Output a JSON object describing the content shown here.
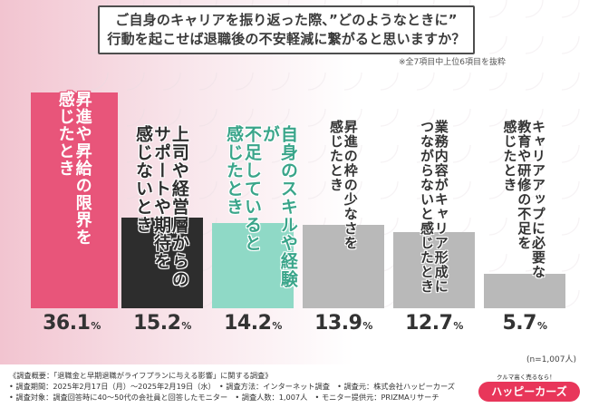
{
  "title": {
    "line1": "ご自身のキャリアを振り返った際、”どのようなときに”",
    "line2": "行動を起こせば退職後の不安軽減に繋がると思いますか？"
  },
  "subnote": "※全7項目中上位6項目を抜粋",
  "chart_data": {
    "type": "bar",
    "categories": [
      "昇進や昇給の限界を感じたとき",
      "上司や経営層からのサポートや期待を感じないとき",
      "自身のスキルや経験が不足していると感じたとき",
      "昇進の枠の少なさを感じたとき",
      "業務内容がキャリア形成につながらないと感じたとき",
      "キャリアアップに必要な教育や研修の不足を感じたとき"
    ],
    "label_lines": [
      [
        "昇進や昇給の限界を",
        "感じたとき"
      ],
      [
        "上司や経営層からの",
        "サポートや期待を",
        "感じないとき"
      ],
      [
        "自身のスキルや経験が",
        "不足していると",
        "感じたとき"
      ],
      [
        "昇進の枠の少なさを",
        "感じたとき"
      ],
      [
        "業務内容がキャリア形成に",
        "つながらないと感じたとき"
      ],
      [
        "キャリアアップに必要な",
        "教育や研修の不足を",
        "感じたとき"
      ]
    ],
    "values": [
      36.1,
      15.2,
      14.2,
      13.9,
      12.7,
      5.7
    ],
    "value_labels": [
      "36.1",
      "15.2",
      "14.2",
      "13.9",
      "12.7",
      "5.7"
    ],
    "unit": "%",
    "ylim": [
      0,
      36.1
    ],
    "colors": {
      "bar_fill": [
        "#e8557a",
        "#2d2d2d",
        "#8fd9c6",
        "#b9b9b9",
        "#b9b9b9",
        "#b9b9b9"
      ],
      "label_color": [
        "#ffffff",
        "#2d2d2d",
        "#3aa58a",
        "#333333",
        "#333333",
        "#333333"
      ],
      "label_outline": [
        "#e8557a",
        "#ffffff",
        "#ffffff",
        "#ffffff",
        "#ffffff",
        "#ffffff"
      ]
    }
  },
  "n_note": "(n=1,007人)",
  "footer": {
    "line1": "《調査概要：「退職金と早期退職がライフプランに与える影響」に関する調査》",
    "line2": "• 調査期間：2025年2月17日（月）〜2025年2月19日（水）　• 調査方法：インターネット調査　• 調査元：株式会社ハッピーカーズ",
    "line3": "• 調査対象：調査回答時に40〜50代の会社員と回答したモニター　• 調査人数：1,007人　• モニター提供元：PRIZMAリサーチ"
  },
  "brand": {
    "tagline": "クルマ高く売るなら！",
    "name": "ハッピーカーズ"
  }
}
